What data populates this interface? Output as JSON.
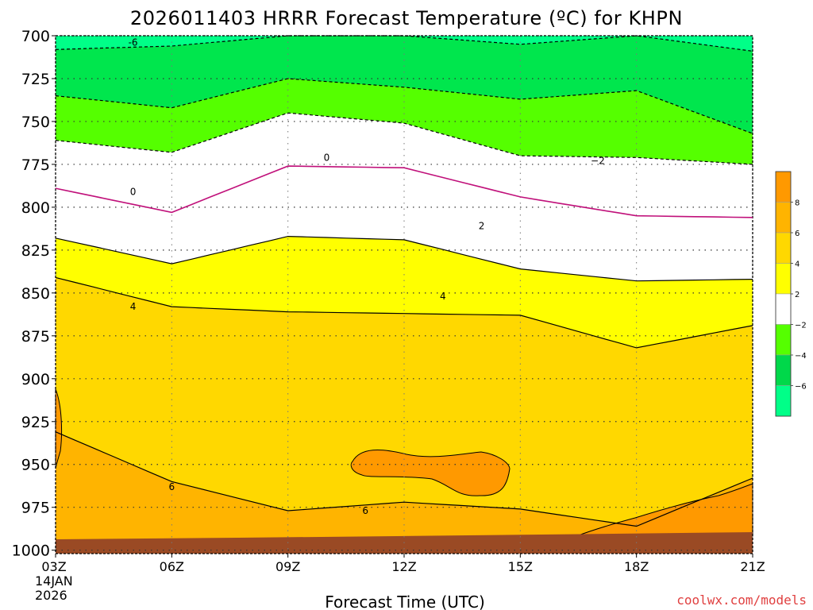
{
  "chart_data": {
    "type": "contour",
    "title": "2026011403 HRRR Forecast Temperature (ºC) for KHPN",
    "xlabel": "Forecast Time (UTC)",
    "ylabel": "",
    "x_ticks": [
      "03Z",
      "06Z",
      "09Z",
      "12Z",
      "15Z",
      "18Z",
      "21Z"
    ],
    "x_start_date": [
      "14JAN",
      "2026"
    ],
    "x_hours": [
      3,
      21
    ],
    "y_ticks": [
      700,
      725,
      750,
      775,
      800,
      825,
      850,
      875,
      900,
      925,
      950,
      975,
      1000
    ],
    "y_range_hpa": [
      700,
      1002
    ],
    "colorbar": {
      "labels": [
        "8",
        "6",
        "4",
        "2",
        "−2",
        "−4",
        "−6"
      ],
      "levels": [
        8,
        6,
        4,
        2,
        -2,
        -4,
        -6
      ],
      "colors": [
        "#ff9900",
        "#ffb400",
        "#ffd800",
        "#ffff00",
        "#ffffff",
        "#55ff00",
        "#00d84a",
        "#00ff88"
      ]
    },
    "fill_colors": {
      "neg6": "#00ff88",
      "neg4": "#00e64d",
      "neg2": "#55ff00",
      "zero": "#ffffff",
      "pos2": "#ffff00",
      "pos4": "#ffd800",
      "pos6": "#ffb400",
      "pos8": "#ff9900",
      "ground": "#9a4a24"
    },
    "contour_colors": {
      "zero": "#c0107a",
      "positive": "#000000",
      "negative": "#000000"
    },
    "contour_labels": [
      {
        "text": "-6",
        "hour": 5.0,
        "p": 704
      },
      {
        "text": "0",
        "hour": 10.0,
        "p": 771
      },
      {
        "text": "0",
        "hour": 5.0,
        "p": 791
      },
      {
        "text": "−2",
        "hour": 17.0,
        "p": 773
      },
      {
        "text": "2",
        "hour": 14.0,
        "p": 811
      },
      {
        "text": "4",
        "hour": 5.0,
        "p": 858
      },
      {
        "text": "4",
        "hour": 13.0,
        "p": 852
      },
      {
        "text": "6",
        "hour": 6.0,
        "p": 963
      },
      {
        "text": "6",
        "hour": 11.0,
        "p": 977
      }
    ],
    "series": [
      {
        "level": -6,
        "hours": [
          3,
          6,
          9,
          12,
          15,
          18,
          21
        ],
        "p": [
          708,
          706,
          700,
          700,
          705,
          700,
          709
        ]
      },
      {
        "level": -4,
        "hours": [
          3,
          6,
          9,
          12,
          15,
          18,
          21
        ],
        "p": [
          735,
          742,
          725,
          730,
          737,
          732,
          757
        ]
      },
      {
        "level": -2,
        "hours": [
          3,
          6,
          9,
          12,
          15,
          18,
          21
        ],
        "p": [
          761,
          768,
          745,
          751,
          770,
          771,
          775
        ]
      },
      {
        "level": 0,
        "hours": [
          3,
          6,
          9,
          12,
          15,
          18,
          21
        ],
        "p": [
          789,
          803,
          776,
          777,
          794,
          805,
          806
        ]
      },
      {
        "level": 2,
        "hours": [
          3,
          6,
          9,
          12,
          15,
          18,
          21
        ],
        "p": [
          818,
          833,
          817,
          819,
          836,
          843,
          842
        ]
      },
      {
        "level": 4,
        "hours": [
          3,
          6,
          9,
          12,
          15,
          18,
          21
        ],
        "p": [
          841,
          858,
          861,
          862,
          863,
          882,
          869
        ]
      },
      {
        "level": 6,
        "hours": [
          3,
          6,
          9,
          12,
          15,
          18,
          21
        ],
        "p": [
          931,
          960,
          977,
          972,
          976,
          986,
          958
        ]
      }
    ]
  },
  "credit": "coolwx.com/models"
}
